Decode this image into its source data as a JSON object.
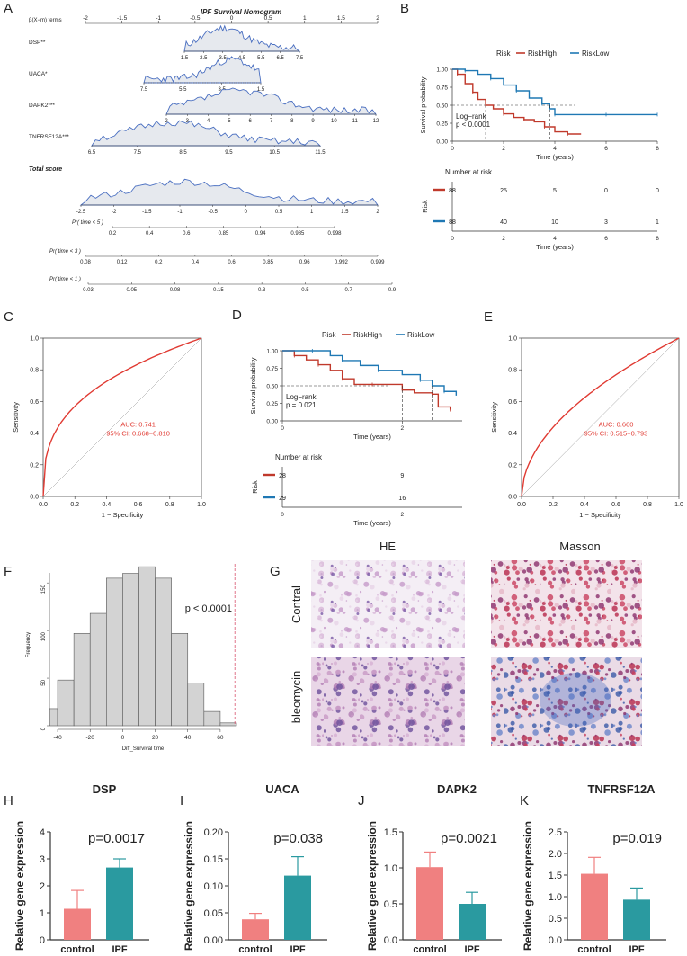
{
  "panel_labels": {
    "A": "A",
    "B": "B",
    "C": "C",
    "D": "D",
    "E": "E",
    "F": "F",
    "G": "G",
    "H": "H",
    "I": "I",
    "J": "J",
    "K": "K"
  },
  "colors": {
    "high": "#c0392b",
    "low": "#1f78b4",
    "roc": "#e03a32",
    "bar_control": "#f08080",
    "bar_ipf": "#2a9aa0",
    "hist": "#d3d3d3",
    "density_line": "#4a6fc1",
    "density_fill": "#e6e9ee"
  },
  "nomogram": {
    "title": "IPF Survival Nomogram",
    "scale_label": "β(X−m) terms",
    "top_ticks": [
      "-2",
      "-1.5",
      "-1",
      "-0.5",
      "0",
      "0.5",
      "1",
      "1.5",
      "2"
    ],
    "rows": [
      {
        "name": "DSP**",
        "ticks": [
          "1.5",
          "2.5",
          "3.5",
          "4.5",
          "5.5",
          "6.5",
          "7.5"
        ]
      },
      {
        "name": "UACA*",
        "ticks": [
          "7.5",
          "5.5",
          "3.5",
          "1.5"
        ]
      },
      {
        "name": "DAPK2***",
        "ticks": [
          "2",
          "3",
          "4",
          "5",
          "6",
          "7",
          "8",
          "9",
          "10",
          "11",
          "12"
        ]
      },
      {
        "name": "TNFRSF12A***",
        "ticks": [
          "6.5",
          "7.5",
          "8.5",
          "9.5",
          "10.5",
          "11.5"
        ]
      }
    ],
    "total_label": "Total score",
    "total_ticks": [
      "-2.5",
      "-2",
      "-1.5",
      "-1",
      "-0.5",
      "0",
      "0.5",
      "1",
      "1.5",
      "2"
    ],
    "pr_rows": [
      {
        "label": "Pr( time < 5 )",
        "ticks": [
          "0.2",
          "0.4",
          "0.6",
          "0.85",
          "0.94",
          "0.985",
          "0.998"
        ]
      },
      {
        "label": "Pr( time < 3 )",
        "ticks": [
          "0.08",
          "0.12",
          "0.2",
          "0.4",
          "0.6",
          "0.85",
          "0.96",
          "0.992",
          "0.999"
        ]
      },
      {
        "label": "Pr( time < 1 )",
        "ticks": [
          "0.03",
          "0.05",
          "0.08",
          "0.15",
          "0.3",
          "0.5",
          "0.7",
          "0.9"
        ]
      }
    ]
  },
  "chart_data": [
    {
      "id": "B",
      "type": "line",
      "title": "Risk",
      "legend": [
        "RiskHigh",
        "RiskLow"
      ],
      "xlabel": "Time (years)",
      "ylabel": "Survival probability",
      "xlim": [
        0,
        8
      ],
      "ylim": [
        0,
        1
      ],
      "x_ticks": [
        "0",
        "2",
        "4",
        "6",
        "8"
      ],
      "y_ticks": [
        "0.00",
        "0.25",
        "0.50",
        "0.75",
        "1.00"
      ],
      "annotation": "Log−rank\np < 0.0001",
      "series": [
        {
          "name": "RiskHigh",
          "x": [
            0,
            0.2,
            0.5,
            0.8,
            1.0,
            1.3,
            1.6,
            2.0,
            2.4,
            2.8,
            3.2,
            3.6,
            4.0,
            4.5,
            5.0
          ],
          "y": [
            1,
            0.93,
            0.8,
            0.68,
            0.58,
            0.5,
            0.45,
            0.38,
            0.33,
            0.3,
            0.27,
            0.2,
            0.13,
            0.1,
            0.09
          ]
        },
        {
          "name": "RiskLow",
          "x": [
            0,
            0.5,
            1.0,
            1.5,
            2.0,
            2.5,
            3.0,
            3.5,
            3.8,
            4.0,
            5.0,
            6.0,
            7.0,
            8.0
          ],
          "y": [
            1,
            0.98,
            0.93,
            0.87,
            0.78,
            0.7,
            0.6,
            0.52,
            0.45,
            0.37,
            0.37,
            0.37,
            0.37,
            0.37
          ]
        }
      ],
      "risk_table": {
        "title": "Number at risk",
        "ylabel": "Risk",
        "rows": [
          [
            "88",
            "25",
            "5",
            "0",
            "0"
          ],
          [
            "88",
            "40",
            "10",
            "3",
            "1"
          ]
        ],
        "x_ticks": [
          "0",
          "2",
          "4",
          "6",
          "8"
        ],
        "xlabel": "Time (years)"
      }
    },
    {
      "id": "C",
      "type": "line",
      "xlabel": "1 − Specificity",
      "ylabel": "Sensitivity",
      "xlim": [
        0,
        1
      ],
      "ylim": [
        0,
        1
      ],
      "x_ticks": [
        "0.0",
        "0.2",
        "0.4",
        "0.6",
        "0.8",
        "1.0"
      ],
      "y_ticks": [
        "0.0",
        "0.2",
        "0.4",
        "0.6",
        "0.8",
        "1.0"
      ],
      "auc_label": "AUC: 0.741",
      "ci_label": "95% CI: 0.668−0.810",
      "auc": 0.741
    },
    {
      "id": "D",
      "type": "line",
      "title": "Risk",
      "legend": [
        "RiskHigh",
        "RiskLow"
      ],
      "xlabel": "Time (years)",
      "ylabel": "Survival probability",
      "xlim": [
        0,
        3
      ],
      "ylim": [
        0,
        1
      ],
      "x_ticks": [
        "0",
        "2"
      ],
      "y_ticks": [
        "0.00",
        "0.25",
        "0.50",
        "0.75",
        "1.00"
      ],
      "annotation": "Log−rank\np = 0.021",
      "series": [
        {
          "name": "RiskHigh",
          "x": [
            0,
            0.2,
            0.4,
            0.6,
            0.8,
            1.0,
            1.2,
            1.5,
            1.8,
            2.0,
            2.2,
            2.5,
            2.6,
            2.8
          ],
          "y": [
            1,
            0.93,
            0.87,
            0.8,
            0.72,
            0.6,
            0.52,
            0.52,
            0.52,
            0.44,
            0.4,
            0.38,
            0.2,
            0.16
          ]
        },
        {
          "name": "RiskLow",
          "x": [
            0,
            0.5,
            0.8,
            1.0,
            1.3,
            1.6,
            2.0,
            2.3,
            2.5,
            2.7,
            2.9
          ],
          "y": [
            1,
            1,
            0.93,
            0.86,
            0.79,
            0.72,
            0.66,
            0.58,
            0.5,
            0.42,
            0.36
          ]
        }
      ],
      "risk_table": {
        "title": "Number at risk",
        "ylabel": "Risk",
        "rows": [
          [
            "28",
            "9"
          ],
          [
            "29",
            "16"
          ]
        ],
        "x_ticks": [
          "0",
          "2"
        ],
        "xlabel": "Time (years)"
      }
    },
    {
      "id": "E",
      "type": "line",
      "xlabel": "1 − Specificity",
      "ylabel": "Sensitivity",
      "xlim": [
        0,
        1
      ],
      "ylim": [
        0,
        1
      ],
      "x_ticks": [
        "0.0",
        "0.2",
        "0.4",
        "0.6",
        "0.8",
        "1.0"
      ],
      "y_ticks": [
        "0.0",
        "0.2",
        "0.4",
        "0.6",
        "0.8",
        "1.0"
      ],
      "auc_label": "AUC: 0.660",
      "ci_label": "95% CI: 0.515−0.793",
      "auc": 0.66
    },
    {
      "id": "F",
      "type": "bar",
      "xlabel": "Diff_Survival time",
      "ylabel": "Frequency",
      "xlim": [
        -45,
        70
      ],
      "ylim": [
        0,
        170
      ],
      "x_ticks": [
        "-40",
        "-20",
        "0",
        "20",
        "40",
        "60"
      ],
      "y_ticks": [
        "0",
        "50",
        "100",
        "150"
      ],
      "bin_edges": [
        -45,
        -40,
        -30,
        -20,
        -10,
        0,
        10,
        20,
        30,
        40,
        50,
        60
      ],
      "values": [
        18,
        48,
        97,
        118,
        155,
        160,
        167,
        155,
        97,
        45,
        15,
        3
      ],
      "p_label": "p < 0.0001",
      "observed": 69
    },
    {
      "id": "H",
      "type": "bar",
      "title": "DSP",
      "ylabel": "Relative gene expression",
      "categories": [
        "control",
        "IPF"
      ],
      "values": [
        1.15,
        2.68
      ],
      "errors": [
        0.68,
        0.32
      ],
      "ylim": [
        0,
        4
      ],
      "y_ticks": [
        "0",
        "1",
        "2",
        "3",
        "4"
      ],
      "p_label": "p=0.0017"
    },
    {
      "id": "I",
      "type": "bar",
      "title": "UACA",
      "ylabel": "Relative gene expression",
      "categories": [
        "control",
        "IPF"
      ],
      "values": [
        0.038,
        0.119
      ],
      "errors": [
        0.011,
        0.035
      ],
      "ylim": [
        0,
        0.2
      ],
      "y_ticks": [
        "0.00",
        "0.05",
        "0.10",
        "0.15",
        "0.20"
      ],
      "p_label": "p=0.038"
    },
    {
      "id": "J",
      "type": "bar",
      "title": "DAPK2",
      "ylabel": "Relative gene expression",
      "categories": [
        "control",
        "IPF"
      ],
      "values": [
        1.01,
        0.5
      ],
      "errors": [
        0.21,
        0.16
      ],
      "ylim": [
        0,
        1.5
      ],
      "y_ticks": [
        "0.0",
        "0.5",
        "1.0",
        "1.5"
      ],
      "p_label": "p=0.0021"
    },
    {
      "id": "K",
      "type": "bar",
      "title": "TNFRSF12A",
      "ylabel": "Relative gene expression",
      "categories": [
        "control",
        "IPF"
      ],
      "values": [
        1.53,
        0.93
      ],
      "errors": [
        0.38,
        0.27
      ],
      "ylim": [
        0,
        2.5
      ],
      "y_ticks": [
        "0.0",
        "0.5",
        "1.0",
        "1.5",
        "2.0",
        "2.5"
      ],
      "p_label": "p=0.019"
    }
  ],
  "histology": {
    "col_headers": [
      "HE",
      "Masson"
    ],
    "row_labels": [
      "Contral",
      "bleomycin"
    ]
  }
}
